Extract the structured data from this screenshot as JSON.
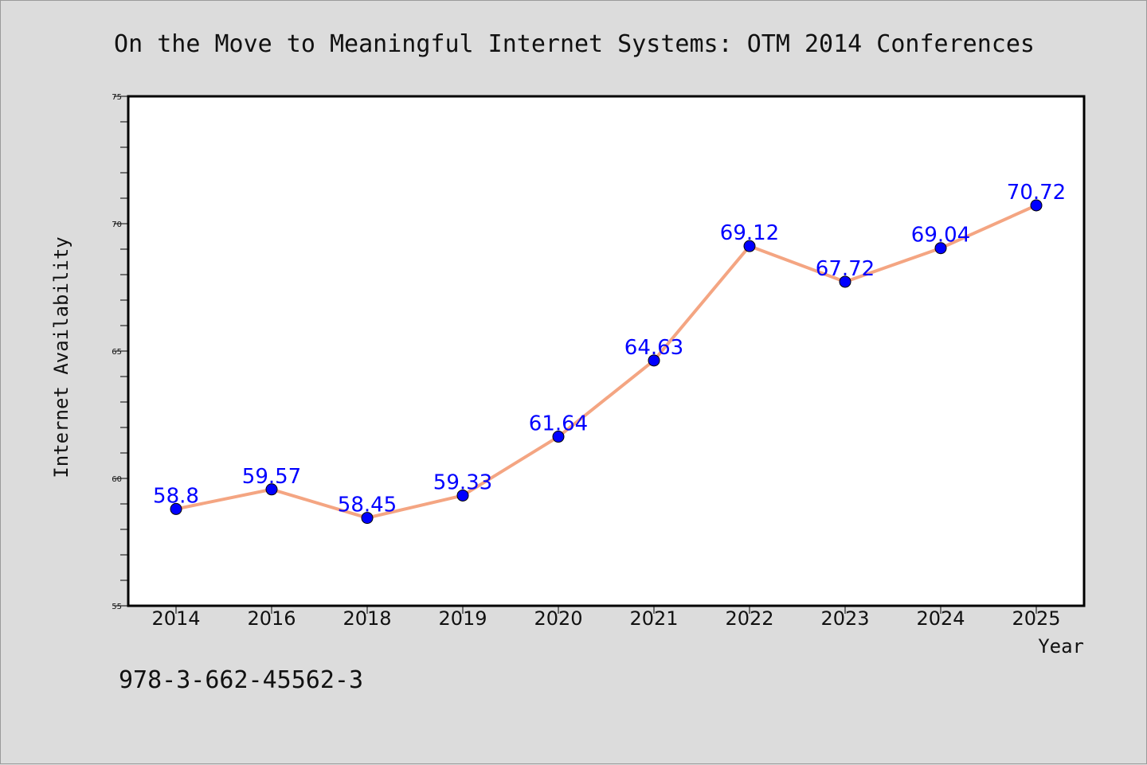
{
  "chart_data": {
    "type": "line",
    "title": "On the Move to Meaningful Internet Systems: OTM 2014 Conferences",
    "xlabel": "Year",
    "ylabel": "Internet Availability",
    "categories": [
      "2014",
      "2016",
      "2018",
      "2019",
      "2020",
      "2021",
      "2022",
      "2023",
      "2024",
      "2025"
    ],
    "series": [
      {
        "values": [
          58.8,
          59.57,
          58.45,
          59.33,
          61.64,
          64.63,
          69.12,
          67.72,
          69.04,
          70.72
        ],
        "labels": [
          "58.8",
          "59.57",
          "58.45",
          "59.33",
          "61.64",
          "64.63",
          "69.12",
          "67.72",
          "69.04",
          "70.72"
        ]
      }
    ],
    "ylim": [
      55,
      75
    ],
    "yticks": [
      "55",
      "60",
      "65",
      "70",
      "75"
    ],
    "grid": false,
    "line_color": "#f4a582",
    "marker_color": "#0000ff",
    "label_color": "#0000ff",
    "background": "#dcdcdc",
    "plot_background": "#ffffff"
  },
  "footnote": "978-3-662-45562-3"
}
